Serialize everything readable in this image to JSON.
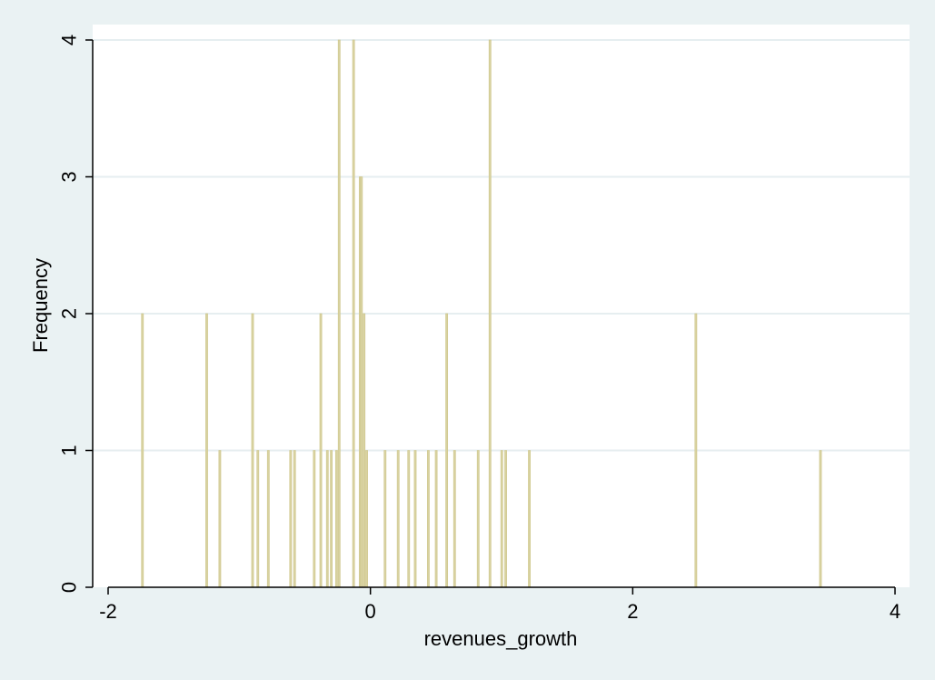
{
  "chart_data": {
    "type": "bar",
    "title": "",
    "xlabel": "revenues_growth",
    "ylabel": "Frequency",
    "xlim": [
      -2.1,
      4.1
    ],
    "ylim": [
      0,
      4
    ],
    "x_ticks": [
      -2,
      0,
      2,
      4
    ],
    "x_tick_labels": [
      "-2",
      "0",
      "2",
      "4"
    ],
    "y_ticks": [
      0,
      1,
      2,
      3,
      4
    ],
    "y_tick_labels": [
      "0",
      "1",
      "2",
      "3",
      "4"
    ],
    "grid": "horizontal",
    "bar_width": 0.012,
    "colors": {
      "background": "#eaf2f3",
      "plot_background": "#ffffff",
      "bar_fill": "#d8d2a0",
      "bar_stroke": "#cfc78d",
      "grid": "#e6eef0",
      "axis": "#000000"
    },
    "x": [
      -1.74,
      -1.25,
      -1.15,
      -0.9,
      -0.86,
      -0.78,
      -0.61,
      -0.58,
      -0.43,
      -0.38,
      -0.33,
      -0.3,
      -0.26,
      -0.24,
      -0.13,
      -0.08,
      -0.07,
      -0.05,
      -0.03,
      0.11,
      0.21,
      0.29,
      0.34,
      0.44,
      0.5,
      0.58,
      0.64,
      0.82,
      0.91,
      1.0,
      1.03,
      1.21,
      2.48,
      3.43
    ],
    "values": [
      2,
      2,
      1,
      2,
      1,
      1,
      1,
      1,
      1,
      2,
      1,
      1,
      1,
      4,
      4,
      3,
      3,
      2,
      1,
      1,
      1,
      1,
      1,
      1,
      1,
      2,
      1,
      1,
      4,
      1,
      1,
      1,
      2,
      1
    ]
  }
}
